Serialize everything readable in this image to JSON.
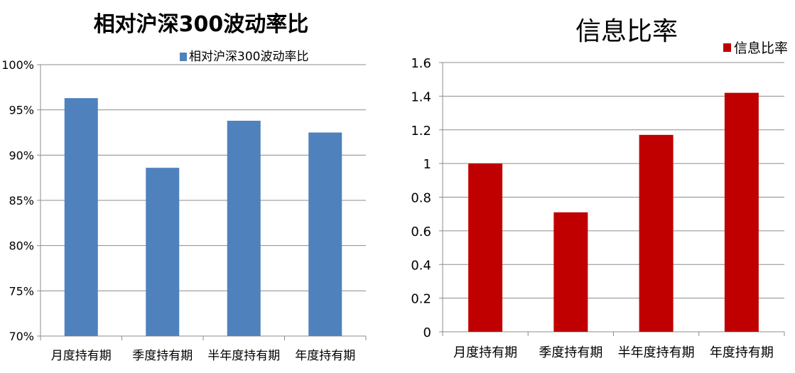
{
  "chart_data": [
    {
      "type": "bar",
      "title": "相对沪深300波动率比",
      "categories": [
        "月度持有期",
        "季度持有期",
        "半年度持有期",
        "年度持有期"
      ],
      "series": [
        {
          "name": "相对沪深300波动率比",
          "values": [
            96.3,
            88.6,
            93.8,
            92.5
          ],
          "color": "#4f81bd"
        }
      ],
      "y_ticks": [
        "70%",
        "75%",
        "80%",
        "85%",
        "90%",
        "95%",
        "100%"
      ],
      "ylim": [
        70,
        100
      ],
      "y_unit": "%",
      "grid": true,
      "legend_position": "top"
    },
    {
      "type": "bar",
      "title": "信息比率",
      "categories": [
        "月度持有期",
        "季度持有期",
        "半年度持有期",
        "年度持有期"
      ],
      "series": [
        {
          "name": "信息比率",
          "values": [
            1.0,
            0.71,
            1.17,
            1.42
          ],
          "color": "#c00000"
        }
      ],
      "y_ticks": [
        "0",
        "0.2",
        "0.4",
        "0.6",
        "0.8",
        "1",
        "1.2",
        "1.4",
        "1.6"
      ],
      "ylim": [
        0,
        1.6
      ],
      "grid": true,
      "legend_position": "top-right"
    }
  ]
}
